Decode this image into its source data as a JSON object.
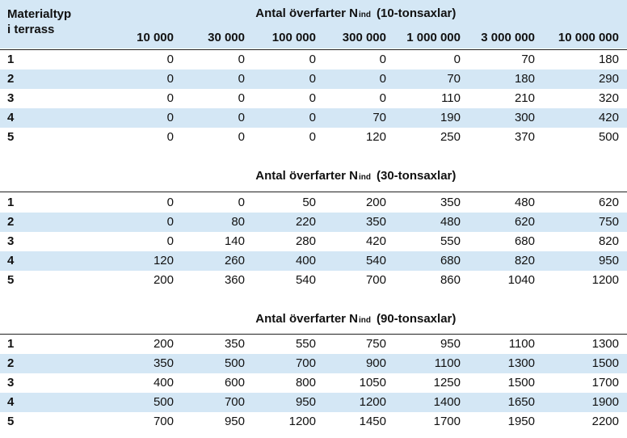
{
  "header": {
    "row_label": "Materialtyp\ni terrass",
    "columns": [
      "10 000",
      "30 000",
      "100 000",
      "300 000",
      "1 000 000",
      "3 000 000",
      "10 000 000"
    ]
  },
  "sections": [
    {
      "title_pre": "Antal överfarter N",
      "title_sub": "ind",
      "title_post": "(10-tonsaxlar)",
      "rows": [
        {
          "label": "1",
          "values": [
            "0",
            "0",
            "0",
            "0",
            "0",
            "70",
            "180"
          ]
        },
        {
          "label": "2",
          "values": [
            "0",
            "0",
            "0",
            "0",
            "70",
            "180",
            "290"
          ]
        },
        {
          "label": "3",
          "values": [
            "0",
            "0",
            "0",
            "0",
            "110",
            "210",
            "320"
          ]
        },
        {
          "label": "4",
          "values": [
            "0",
            "0",
            "0",
            "70",
            "190",
            "300",
            "420"
          ]
        },
        {
          "label": "5",
          "values": [
            "0",
            "0",
            "0",
            "120",
            "250",
            "370",
            "500"
          ]
        }
      ]
    },
    {
      "title_pre": "Antal överfarter N",
      "title_sub": "ind",
      "title_post": "(30-tonsaxlar)",
      "rows": [
        {
          "label": "1",
          "values": [
            "0",
            "0",
            "50",
            "200",
            "350",
            "480",
            "620"
          ]
        },
        {
          "label": "2",
          "values": [
            "0",
            "80",
            "220",
            "350",
            "480",
            "620",
            "750"
          ]
        },
        {
          "label": "3",
          "values": [
            "0",
            "140",
            "280",
            "420",
            "550",
            "680",
            "820"
          ]
        },
        {
          "label": "4",
          "values": [
            "120",
            "260",
            "400",
            "540",
            "680",
            "820",
            "950"
          ]
        },
        {
          "label": "5",
          "values": [
            "200",
            "360",
            "540",
            "700",
            "860",
            "1040",
            "1200"
          ]
        }
      ]
    },
    {
      "title_pre": "Antal överfarter N",
      "title_sub": "ind",
      "title_post": "(90-tonsaxlar)",
      "rows": [
        {
          "label": "1",
          "values": [
            "200",
            "350",
            "550",
            "750",
            "950",
            "1100",
            "1300"
          ]
        },
        {
          "label": "2",
          "values": [
            "350",
            "500",
            "700",
            "900",
            "1100",
            "1300",
            "1500"
          ]
        },
        {
          "label": "3",
          "values": [
            "400",
            "600",
            "800",
            "1050",
            "1250",
            "1500",
            "1700"
          ]
        },
        {
          "label": "4",
          "values": [
            "500",
            "700",
            "950",
            "1200",
            "1400",
            "1650",
            "1900"
          ]
        },
        {
          "label": "5",
          "values": [
            "700",
            "950",
            "1200",
            "1450",
            "1700",
            "1950",
            "2200"
          ]
        }
      ]
    }
  ]
}
